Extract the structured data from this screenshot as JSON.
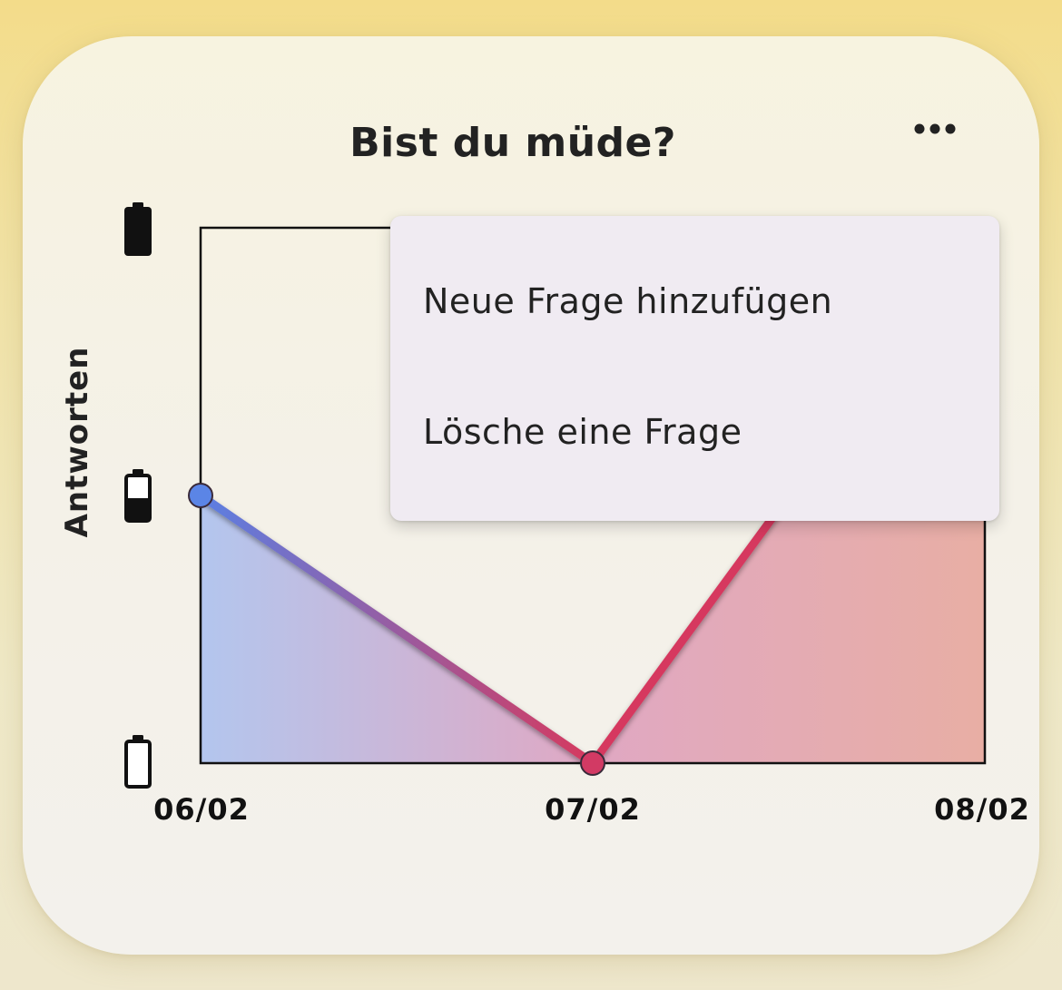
{
  "question_card": {
    "title": "Bist du müde?",
    "more_icon": "ellipsis-horizontal-icon"
  },
  "context_menu": {
    "items": [
      {
        "label": "Neue Frage hinzufügen"
      },
      {
        "label": "Lösche eine Frage"
      }
    ]
  },
  "chart_data": {
    "type": "area",
    "ylabel": "Antworten",
    "y_ticks": [
      {
        "icon": "battery-empty-icon",
        "level": 0
      },
      {
        "icon": "battery-half-icon",
        "level": 1
      },
      {
        "icon": "battery-full-icon",
        "level": 2
      }
    ],
    "ylim": [
      0,
      2
    ],
    "x": [
      "06/02",
      "07/02",
      "08/02"
    ],
    "series": [
      {
        "values": [
          1,
          0,
          2
        ]
      }
    ],
    "colors": {
      "start": "#5b7fe3",
      "end": "#d6395e",
      "point_start": "#5b85e6",
      "point_end": "#d23a64"
    }
  }
}
